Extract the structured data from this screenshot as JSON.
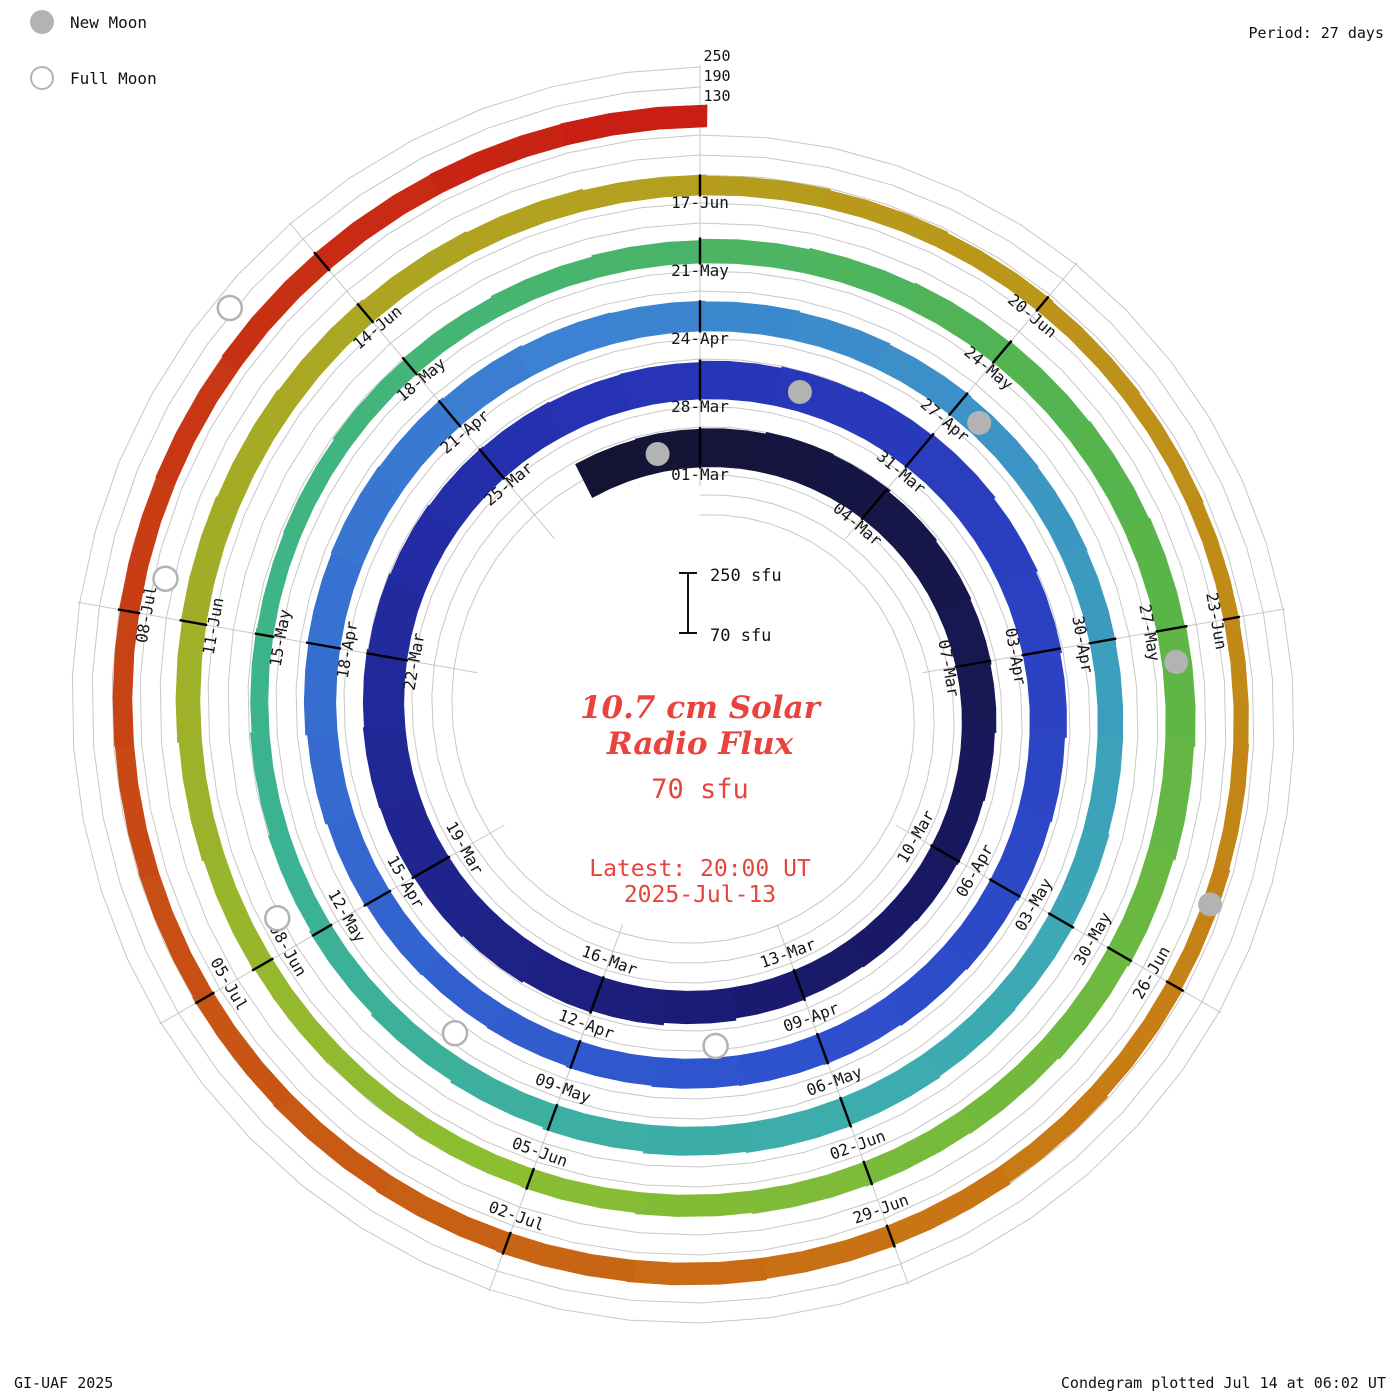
{
  "legend": {
    "new_moon_label": "New Moon",
    "full_moon_label": "Full Moon"
  },
  "period_label": "Period: 27 days",
  "footer": {
    "credit": "GI-UAF 2025",
    "plotted": "Condegram plotted Jul 14 at 06:02 UT"
  },
  "center": {
    "title_line1": "10.7 cm Solar",
    "title_line2": "Radio Flux",
    "current_value": "70 sfu",
    "latest_line1": "Latest: 20:00 UT",
    "latest_line2": "2025-Jul-13",
    "scale_top": "250 sfu",
    "scale_bottom": "70 sfu"
  },
  "colors": {
    "annotation_red": "#e8433c",
    "moon_gray": "#b3b3b3",
    "grid_gray": "#c7c7c7",
    "label_black": "#111111"
  },
  "chart_data": {
    "type": "spiral",
    "name": "condegram",
    "quantity": "10.7 cm solar radio flux",
    "unit": "sfu",
    "period_days": 27,
    "flux_floor_sfu": 70,
    "grid_levels_sfu": [
      130,
      190,
      250
    ],
    "start_date": "2025-02-27",
    "end_date": "2025-07-13",
    "angle_zero_index": 2,
    "angle_zero_date": "2025-03-01",
    "ring_start_labels": [
      "01-Mar",
      "28-Mar",
      "24-Apr",
      "21-May",
      "17-Jun"
    ],
    "tick_interval_days": 3,
    "tick_labels": [
      "01-Mar",
      "04-Mar",
      "07-Mar",
      "10-Mar",
      "13-Mar",
      "16-Mar",
      "19-Mar",
      "22-Mar",
      "25-Mar",
      "28-Mar",
      "31-Mar",
      "03-Apr",
      "06-Apr",
      "09-Apr",
      "12-Apr",
      "15-Apr",
      "18-Apr",
      "21-Apr",
      "24-Apr",
      "27-Apr",
      "30-Apr",
      "03-May",
      "06-May",
      "09-May",
      "12-May",
      "15-May",
      "18-May",
      "21-May",
      "24-May",
      "27-May",
      "30-May",
      "02-Jun",
      "05-Jun",
      "08-Jun",
      "11-Jun",
      "14-Jun",
      "17-Jun",
      "20-Jun",
      "23-Jun",
      "26-Jun",
      "29-Jun",
      "02-Jul",
      "05-Jul",
      "08-Jul"
    ],
    "daily_flux_sfu": [
      182,
      184,
      185,
      190,
      188,
      182,
      178,
      175,
      172,
      168,
      165,
      162,
      160,
      158,
      162,
      168,
      175,
      180,
      185,
      190,
      193,
      195,
      192,
      188,
      185,
      182,
      180,
      178,
      180,
      184,
      188,
      192,
      195,
      190,
      185,
      180,
      175,
      172,
      168,
      165,
      162,
      160,
      158,
      155,
      152,
      150,
      152,
      155,
      160,
      165,
      168,
      170,
      168,
      165,
      162,
      160,
      158,
      155,
      152,
      150,
      148,
      146,
      145,
      145,
      148,
      150,
      152,
      155,
      158,
      155,
      150,
      145,
      140,
      135,
      130,
      126,
      122,
      120,
      122,
      126,
      130,
      134,
      138,
      142,
      145,
      148,
      150,
      152,
      155,
      158,
      155,
      150,
      146,
      142,
      140,
      138,
      135,
      132,
      130,
      128,
      130,
      134,
      138,
      142,
      145,
      142,
      140,
      137,
      134,
      130,
      127,
      124,
      121,
      119,
      117,
      115,
      114,
      115,
      118,
      122,
      126,
      130,
      133,
      136,
      135,
      133,
      131,
      129,
      127,
      126,
      127,
      129,
      131,
      133,
      134,
      135,
      136
    ],
    "flux_values_note": "daily values estimated from bar thickness; scale 70-250 sfu",
    "new_moons": {
      "dates": [
        "2025-02-28",
        "2025-03-29",
        "2025-04-27",
        "2025-05-27",
        "2025-06-25"
      ],
      "indices": [
        1,
        30,
        59,
        89,
        118
      ]
    },
    "full_moons": {
      "dates": [
        "2025-03-14",
        "2025-04-13",
        "2025-05-12",
        "2025-06-11",
        "2025-07-10"
      ],
      "indices": [
        15,
        45,
        74,
        104,
        133
      ]
    },
    "color_stops": [
      [
        0,
        "#141432"
      ],
      [
        0.1,
        "#1a1a6e"
      ],
      [
        0.2,
        "#2632b4"
      ],
      [
        0.3,
        "#2e50cd"
      ],
      [
        0.4,
        "#3c82d2"
      ],
      [
        0.48,
        "#3caab4"
      ],
      [
        0.56,
        "#3cb48c"
      ],
      [
        0.64,
        "#55b44b"
      ],
      [
        0.72,
        "#8cbe32"
      ],
      [
        0.8,
        "#b4a01e"
      ],
      [
        0.88,
        "#c87d14"
      ],
      [
        0.94,
        "#c85014"
      ],
      [
        1,
        "#c81e14"
      ]
    ]
  }
}
